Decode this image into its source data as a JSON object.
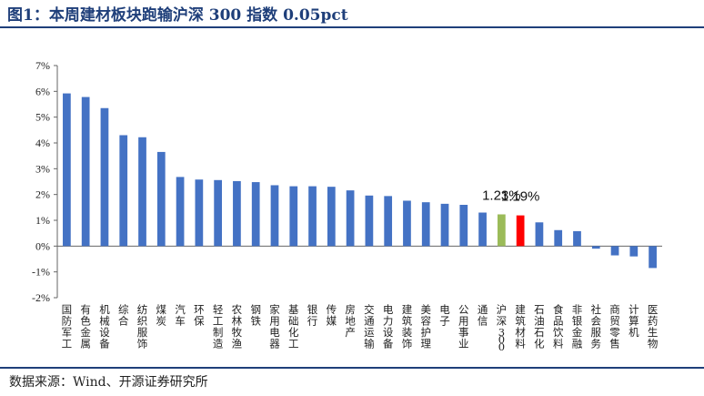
{
  "title": "图1：本周建材板块跑输沪深 300 指数 0.05pct",
  "source": "数据来源：Wind、开源证券研究所",
  "colors": {
    "default": "#4472c4",
    "benchmark": "#9bbb59",
    "highlight": "#ff0000"
  },
  "chart_data": {
    "type": "bar",
    "title": "",
    "xlabel": "",
    "ylabel": "",
    "ylim": [
      -2,
      7
    ],
    "yticks": [
      "-2%",
      "-1%",
      "0%",
      "1%",
      "2%",
      "3%",
      "4%",
      "5%",
      "6%",
      "7%"
    ],
    "grid": false,
    "legend": "none",
    "categories": [
      "国防军工",
      "有色金属",
      "机械设备",
      "综合",
      "纺织服饰",
      "煤炭",
      "汽车",
      "环保",
      "轻工制造",
      "农林牧渔",
      "钢铁",
      "家用电器",
      "基础化工",
      "银行",
      "传媒",
      "房地产",
      "交通运输",
      "电力设备",
      "建筑装饰",
      "美容护理",
      "电子",
      "公用事业",
      "通信",
      "沪深300",
      "建筑材料",
      "石油石化",
      "食品饮料",
      "非银金融",
      "社会服务",
      "商贸零售",
      "计算机",
      "医药生物"
    ],
    "values": [
      5.92,
      5.78,
      5.35,
      4.3,
      4.22,
      3.65,
      2.68,
      2.58,
      2.56,
      2.52,
      2.48,
      2.36,
      2.32,
      2.32,
      2.3,
      2.16,
      1.96,
      1.94,
      1.76,
      1.7,
      1.64,
      1.6,
      1.3,
      1.23,
      1.19,
      0.92,
      0.62,
      0.58,
      -0.1,
      -0.36,
      -0.4,
      -0.85
    ],
    "highlight_index": 24,
    "benchmark_index": 23,
    "data_labels": [
      {
        "category": "沪深300",
        "text": "1.23%"
      },
      {
        "category": "建筑材料",
        "text": "1.19%"
      }
    ]
  }
}
